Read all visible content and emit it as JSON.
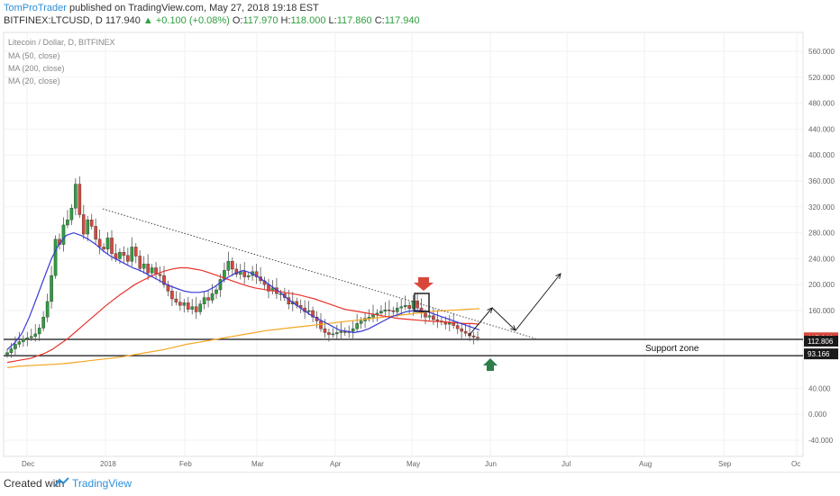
{
  "header": {
    "author": "TomProTrader",
    "published_text": "published on TradingView.com, May 27, 2018 19:18 EST",
    "symbol": "BITFINEX:LTCUSD, D",
    "last_price": "117.940",
    "change": "+0.100 (+0.08%)",
    "open_label": "O:",
    "open": "117.970",
    "high_label": "H:",
    "high": "118.000",
    "low_label": "L:",
    "low": "117.860",
    "close_label": "C:",
    "close": "117.940"
  },
  "footer": {
    "created_with": "Created with",
    "brand": "TradingView"
  },
  "colors": {
    "up": "#2e9e3e",
    "down": "#d9473c",
    "ma50": "#e8332a",
    "ma200": "#f5a623",
    "ma20": "#3a3ad6",
    "label_red": "#d9473c",
    "support_arrow": "#2e7d4a",
    "resistance_arrow": "#d9473c"
  },
  "chart_data": {
    "type": "candlestick",
    "title": "Litecoin / Dollar, D, BITFINEX",
    "legend": [
      "MA (50, close)",
      "MA (200, close)",
      "MA (20, close)"
    ],
    "y_ticks": [
      "560.000",
      "520.000",
      "480.000",
      "440.000",
      "400.000",
      "360.000",
      "320.000",
      "280.000",
      "240.000",
      "200.000",
      "160.000",
      "40.000",
      "0.000",
      "-40.000"
    ],
    "x_ticks": [
      "Dec",
      "2018",
      "Feb",
      "Mar",
      "Apr",
      "May",
      "Jun",
      "Jul",
      "Aug",
      "Sep",
      "Oc"
    ],
    "ylim": [
      -60,
      580
    ],
    "price_labels": [
      {
        "text": "117.940",
        "value": 117.94,
        "style": "red"
      },
      {
        "text": "112.806",
        "value": 112.806,
        "style": "dark"
      },
      {
        "text": "93.166",
        "value": 93.166,
        "style": "dark"
      }
    ],
    "support_zone": {
      "label": "Support zone",
      "top": 112.806,
      "bottom": 93.166
    },
    "candles_close": [
      95,
      101,
      108,
      112,
      116,
      118,
      120,
      124,
      133,
      150,
      174,
      214,
      270,
      262,
      292,
      300,
      318,
      355,
      308,
      278,
      300,
      290,
      270,
      258,
      255,
      272,
      248,
      240,
      250,
      245,
      236,
      258,
      244,
      225,
      232,
      218,
      226,
      216,
      214,
      200,
      190,
      178,
      173,
      168,
      172,
      162,
      166,
      158,
      170,
      180,
      176,
      186,
      192,
      208,
      222,
      236,
      224,
      216,
      220,
      212,
      214,
      220,
      212,
      206,
      200,
      190,
      195,
      186,
      186,
      180,
      170,
      174,
      168,
      164,
      158,
      160,
      150,
      144,
      132,
      126,
      123,
      124,
      126,
      128,
      126,
      128,
      132,
      140,
      144,
      148,
      150,
      154,
      156,
      159,
      161,
      160,
      158,
      164,
      166,
      168,
      163,
      175,
      164,
      156,
      150,
      152,
      146,
      144,
      142,
      139,
      141,
      137,
      132,
      128,
      125,
      121,
      119,
      117.94
    ],
    "ma50": [
      80,
      82,
      84,
      86,
      90,
      94,
      100,
      108,
      116,
      126,
      136,
      146,
      156,
      166,
      175,
      184,
      192,
      200,
      206,
      212,
      217,
      221,
      224,
      226,
      226,
      224,
      222,
      218,
      214,
      210,
      206,
      202,
      198,
      195,
      193,
      191,
      190,
      188,
      186,
      184,
      181,
      178,
      174,
      170,
      166,
      162,
      160,
      158,
      156,
      154,
      152,
      150,
      148,
      147,
      146,
      145,
      144,
      143,
      143,
      142,
      141,
      140,
      140,
      139
    ],
    "ma200": [
      72,
      74,
      75,
      76,
      77,
      78,
      80,
      82,
      84,
      86,
      88,
      91,
      94,
      97,
      100,
      104,
      108,
      111,
      114,
      117,
      120,
      123,
      126,
      129,
      131,
      133,
      135,
      137,
      139,
      141,
      143,
      145,
      147,
      149,
      151,
      153,
      155,
      157,
      159,
      160,
      161,
      162,
      163
    ],
    "ma20": [
      100,
      110,
      125,
      150,
      180,
      210,
      240,
      262,
      276,
      280,
      276,
      270,
      262,
      252,
      244,
      238,
      232,
      226,
      222,
      216,
      210,
      204,
      198,
      194,
      190,
      188,
      188,
      190,
      196,
      204,
      212,
      218,
      222,
      218,
      212,
      204,
      196,
      188,
      178,
      170,
      162,
      154,
      148,
      142,
      136,
      130,
      128,
      126,
      128,
      132,
      138,
      144,
      150,
      154,
      158,
      160,
      160,
      158,
      154,
      150,
      146,
      142,
      138,
      134,
      130
    ]
  },
  "annotations": {
    "trendline": [
      [
        114,
        232
      ],
      [
        594,
        376
      ]
    ],
    "projection": [
      [
        520,
        373
      ],
      [
        546,
        342
      ],
      [
        572,
        367
      ],
      [
        622,
        304
      ]
    ]
  }
}
